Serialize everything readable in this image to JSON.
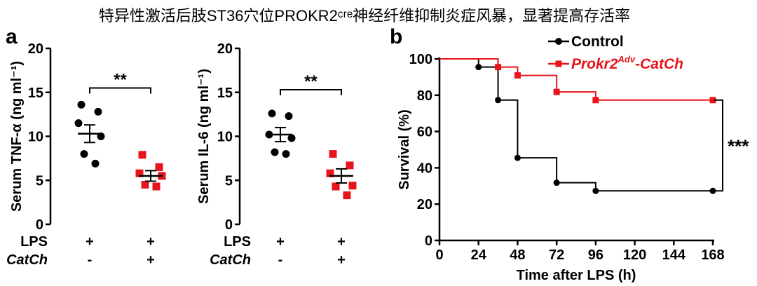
{
  "figure": {
    "title": "特异性激活后肢ST36穴位PROKR2ᶜʳᵉ神经纤维抑制炎症风暴，显著提高存活率"
  },
  "colors": {
    "control": "#000000",
    "treated": "#e8141b"
  },
  "chart_data": [
    {
      "panel": "a",
      "type": "scatter",
      "ylabel": "Serum TNF-α (ng ml⁻¹)",
      "yticks": [
        "0",
        "5",
        "10",
        "15",
        "20"
      ],
      "ylim": [
        0,
        20
      ],
      "row_labels": [
        "LPS",
        "CatCh"
      ],
      "groups": [
        {
          "signs": [
            "+",
            "-"
          ],
          "color": "#000000",
          "marker": "circle",
          "points": [
            13.6,
            12.8,
            11.5,
            10.0,
            8.0,
            6.9
          ],
          "mean": 10.3,
          "sem": 1.0
        },
        {
          "signs": [
            "+",
            "+"
          ],
          "color": "#e8141b",
          "marker": "square",
          "points": [
            7.9,
            6.5,
            5.8,
            5.5,
            4.5,
            4.3
          ],
          "mean": 5.5,
          "sem": 0.6
        }
      ],
      "significance": "**",
      "sig_y": 15.5
    },
    {
      "panel": "",
      "type": "scatter",
      "ylabel": "Serum IL-6 (ng ml⁻¹)",
      "yticks": [
        "0",
        "5",
        "10",
        "15",
        "20"
      ],
      "ylim": [
        0,
        20
      ],
      "row_labels": [
        "LPS",
        "CatCh"
      ],
      "groups": [
        {
          "signs": [
            "+",
            "-"
          ],
          "color": "#000000",
          "marker": "circle",
          "points": [
            12.6,
            12.3,
            10.2,
            9.8,
            8.2,
            8.0
          ],
          "mean": 10.2,
          "sem": 0.8
        },
        {
          "signs": [
            "+",
            "+"
          ],
          "color": "#e8141b",
          "marker": "square",
          "points": [
            8.0,
            6.7,
            5.8,
            4.4,
            4.3,
            3.3
          ],
          "mean": 5.5,
          "sem": 0.8
        }
      ],
      "significance": "**",
      "sig_y": 15.3
    },
    {
      "panel": "b",
      "type": "line",
      "subtype": "kaplan-meier",
      "xlabel": "Time after LPS (h)",
      "ylabel": "Survival (%)",
      "xticks": [
        0,
        24,
        48,
        72,
        96,
        120,
        144,
        168
      ],
      "yticks": [
        0,
        20,
        40,
        60,
        80,
        100
      ],
      "xlim": [
        0,
        168
      ],
      "ylim": [
        0,
        100
      ],
      "legend_position": "top",
      "series": [
        {
          "name": "Control",
          "color": "#000000",
          "marker": "circle",
          "points": [
            [
              24,
              95.5
            ],
            [
              36,
              77.3
            ],
            [
              48,
              45.5
            ],
            [
              72,
              31.8
            ],
            [
              96,
              27.3
            ],
            [
              168,
              27.3
            ]
          ]
        },
        {
          "name_parts": [
            "Prokr2",
            "Adv",
            "-CatCh"
          ],
          "color": "#e8141b",
          "marker": "square",
          "points": [
            [
              36,
              95.5
            ],
            [
              48,
              90.9
            ],
            [
              72,
              81.8
            ],
            [
              96,
              77.3
            ],
            [
              168,
              77.3
            ]
          ]
        }
      ],
      "significance": "***"
    }
  ]
}
